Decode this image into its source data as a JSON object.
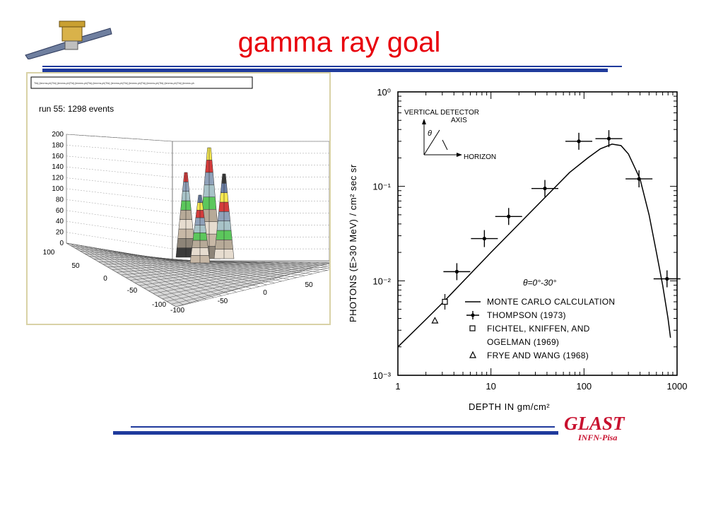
{
  "slide": {
    "title": "gamma ray goal",
    "logo_text": "GLAST",
    "logo_subtext": "INFN-Pisa",
    "colors": {
      "title": "#e8000b",
      "rule": "#1f3a9c",
      "logo": "#c8102e"
    },
    "icons": {
      "satellite": "satellite-icon"
    }
  },
  "left_plot": {
    "caption": "run 55: 1298 events",
    "header_strip": "Tfd(.(lenrms.ph|Tfd(.(lenrms.ph|Tfd(.(lenrms.ph|Tfd(.(lenrms.ph|Tfd(.(lenrms.ph|Tfd(.(lenrms.ph|Tfd(.(lenrms.ph|Tfd(.(lenrms.ph|Tfd(.(lenrms.ph",
    "z_ticks": [
      "0",
      "20",
      "40",
      "60",
      "80",
      "100",
      "120",
      "140",
      "160",
      "180",
      "200"
    ],
    "y_ticks": [
      "100",
      "50",
      "0",
      "-50",
      "-100"
    ],
    "x_ticks": [
      "-100",
      "-50",
      "0",
      "50"
    ]
  },
  "chart_data": {
    "type": "scatter",
    "xlabel": "DEPTH IN gm/cm²",
    "ylabel": "PHOTONS (E>30 MeV) / cm² sec sr",
    "x_scale": "log",
    "y_scale": "log",
    "xlim": [
      1,
      1000
    ],
    "ylim": [
      0.001,
      1
    ],
    "x_tick_labels": [
      "1",
      "10",
      "100",
      "1000"
    ],
    "y_tick_labels": [
      "10⁰",
      "10⁻¹",
      "10⁻²",
      "10⁻³"
    ],
    "angle_label": "θ=0°-30°",
    "inset": {
      "line1": "VERTICAL DETECTOR",
      "line2": "AXIS",
      "theta": "θ",
      "horizon": "HORIZON"
    },
    "legend": [
      {
        "marker": "line",
        "label": "MONTE CARLO CALCULATION"
      },
      {
        "marker": "dot",
        "label": "THOMPSON (1973)"
      },
      {
        "marker": "square",
        "label": "FICHTEL, KNIFFEN, AND"
      },
      {
        "marker": "none",
        "label": "OGELMAN (1969)"
      },
      {
        "marker": "triangle",
        "label": "FRYE AND WANG (1968)"
      }
    ],
    "series": [
      {
        "name": "THOMPSON (1973)",
        "marker": "dot",
        "points": [
          [
            4.3,
            0.0125
          ],
          [
            8.5,
            0.028
          ],
          [
            15.5,
            0.048
          ],
          [
            38,
            0.095
          ],
          [
            88,
            0.3
          ],
          [
            185,
            0.32
          ],
          [
            390,
            0.12
          ],
          [
            780,
            0.0105
          ]
        ]
      },
      {
        "name": "FICHTEL, KNIFFEN, AND OGELMAN (1969)",
        "marker": "square",
        "points": [
          [
            3.2,
            0.006
          ]
        ]
      },
      {
        "name": "FRYE AND WANG (1968)",
        "marker": "triangle",
        "points": [
          [
            2.5,
            0.0038
          ]
        ]
      },
      {
        "name": "MONTE CARLO CALCULATION",
        "marker": "line",
        "points": [
          [
            1,
            0.002
          ],
          [
            2,
            0.0039
          ],
          [
            3,
            0.0058
          ],
          [
            5,
            0.0098
          ],
          [
            10,
            0.02
          ],
          [
            20,
            0.04
          ],
          [
            40,
            0.08
          ],
          [
            70,
            0.14
          ],
          [
            110,
            0.2
          ],
          [
            150,
            0.25
          ],
          [
            200,
            0.28
          ],
          [
            250,
            0.27
          ],
          [
            300,
            0.22
          ],
          [
            400,
            0.12
          ],
          [
            500,
            0.05
          ],
          [
            600,
            0.02
          ],
          [
            700,
            0.009
          ],
          [
            800,
            0.004
          ],
          [
            850,
            0.0025
          ]
        ]
      }
    ]
  }
}
